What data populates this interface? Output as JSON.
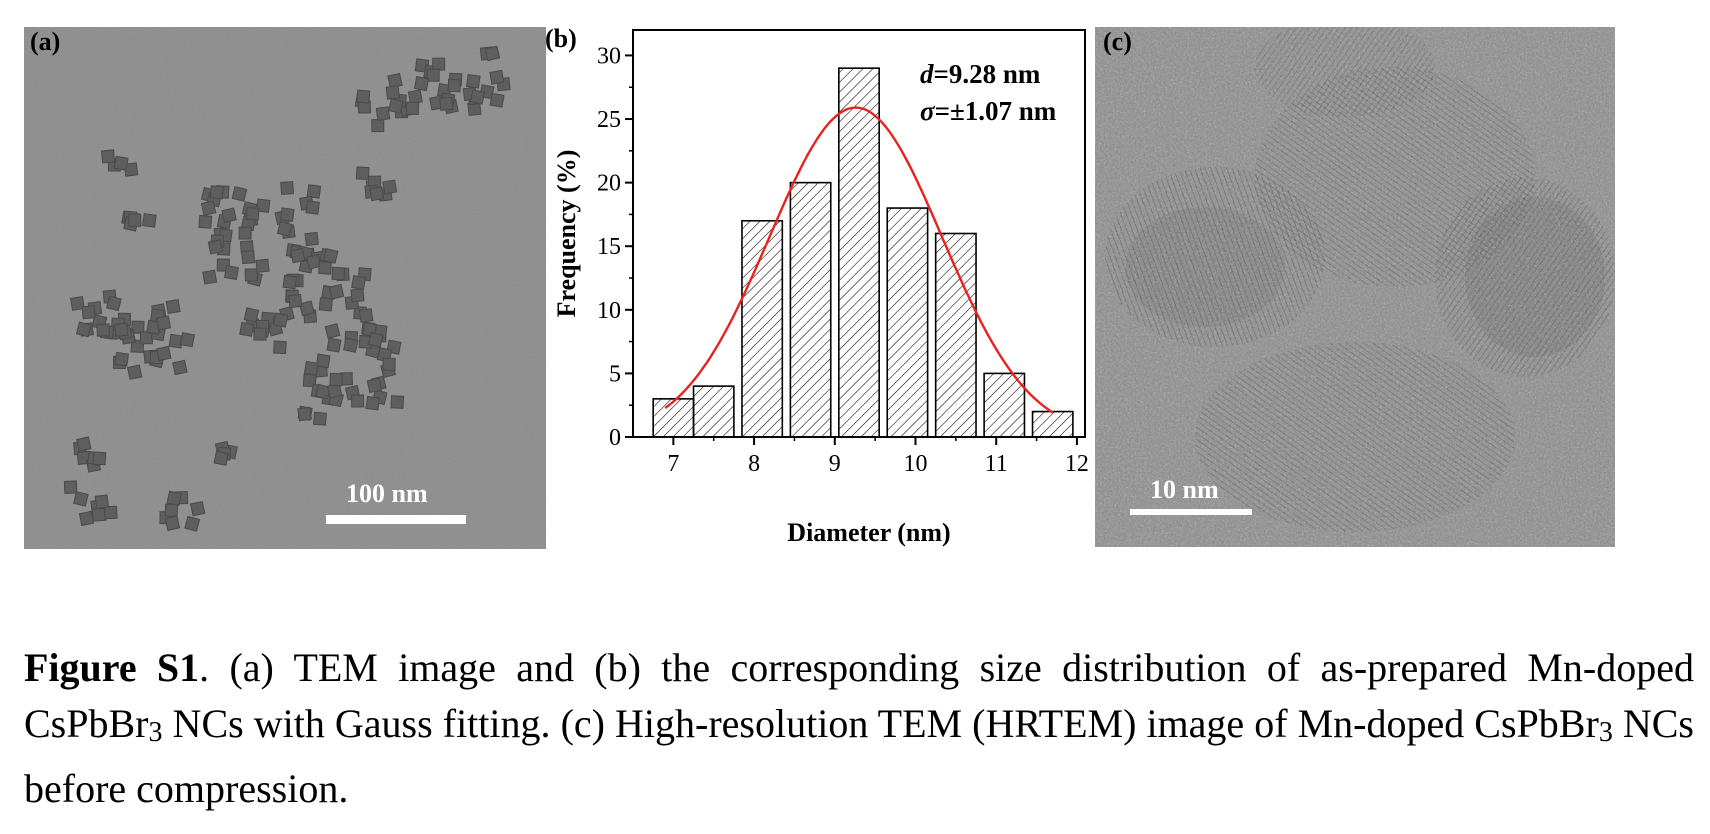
{
  "panel_a": {
    "label": "(a)",
    "scale_bar": "100 nm"
  },
  "panel_b": {
    "label": "(b)"
  },
  "panel_c": {
    "label": "(c)",
    "scale_bar": "10 nm"
  },
  "chart_data": {
    "type": "bar",
    "xlabel": "Diameter (nm)",
    "ylabel": "Frequency (%)",
    "xlim": [
      6.5,
      12.1
    ],
    "ylim": [
      0,
      32
    ],
    "x_ticks": [
      7,
      8,
      9,
      10,
      11,
      12
    ],
    "y_ticks": [
      0,
      5,
      10,
      15,
      20,
      25,
      30
    ],
    "bins": [
      {
        "from": 6.75,
        "to": 7.25,
        "value": 3
      },
      {
        "from": 7.25,
        "to": 7.75,
        "value": 4
      },
      {
        "from": 7.85,
        "to": 8.35,
        "value": 17
      },
      {
        "from": 8.45,
        "to": 8.95,
        "value": 20
      },
      {
        "from": 9.05,
        "to": 9.55,
        "value": 29
      },
      {
        "from": 9.65,
        "to": 10.15,
        "value": 18
      },
      {
        "from": 10.25,
        "to": 10.75,
        "value": 16
      },
      {
        "from": 10.85,
        "to": 11.35,
        "value": 5
      },
      {
        "from": 11.45,
        "to": 11.95,
        "value": 2
      }
    ],
    "fit": {
      "type": "gauss",
      "center": 9.26,
      "sigma": 1.07,
      "peak": 25.9,
      "x_range": [
        6.9,
        11.7
      ],
      "color": "#e8231f"
    },
    "annotation_line1": {
      "symbol": "d",
      "text": "=9.28 nm"
    },
    "annotation_line2": {
      "symbol": "σ",
      "text": "=±1.07 nm"
    }
  },
  "caption": {
    "fig_label": "Figure S1",
    "text_1": ". (a) TEM image and (b) the corresponding size distribution of as-prepared Mn-doped CsPbBr",
    "sub_1": "3",
    "text_2": " NCs with Gauss fitting. (c) High-resolution TEM (HRTEM) image of Mn-doped CsPbBr",
    "sub_2": "3",
    "text_3": " NCs before compression."
  }
}
